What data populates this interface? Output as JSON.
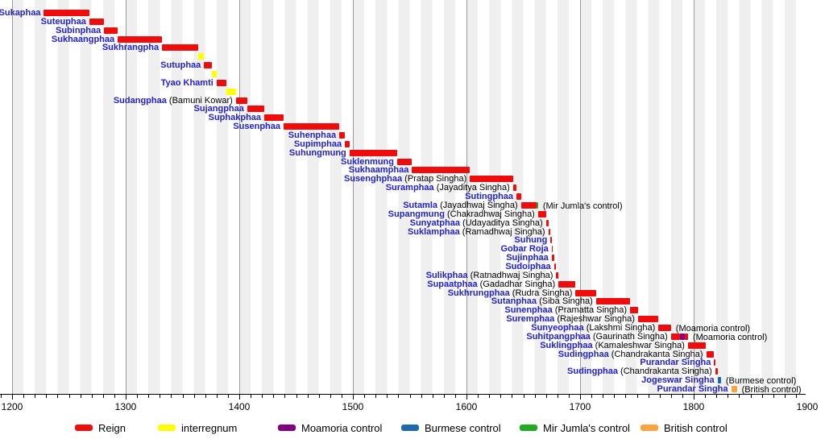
{
  "chart_data": {
    "type": "timeline",
    "title": "",
    "x_axis": {
      "min": 1200,
      "max": 1900,
      "major_tick_step": 100,
      "minor_tick_step": 10,
      "tick_labels": [
        "1200",
        "1300",
        "1400",
        "1500",
        "1600",
        "1700",
        "1800",
        "1900"
      ]
    },
    "colors": {
      "reign": "#ee0c0c",
      "interregnum": "#ffff00",
      "moamoria": "#800080",
      "burmese": "#2068ae",
      "mirjumla": "#22ab22",
      "british": "#ffa43d",
      "label_blue": "#2222cc",
      "gridline": "#999999",
      "stripe": "#efefef",
      "axis": "#000000"
    },
    "legend": [
      {
        "label": "Reign",
        "kind": "reign"
      },
      {
        "label": "interregnum",
        "kind": "interregnum"
      },
      {
        "label": "Moamoria control",
        "kind": "moamoria"
      },
      {
        "label": "Burmese control",
        "kind": "burmese"
      },
      {
        "label": "Mir Jumla's control",
        "kind": "mirjumla"
      },
      {
        "label": "British control",
        "kind": "british"
      }
    ],
    "rows": [
      {
        "name": "Sukaphaa",
        "detail": "",
        "note": "",
        "segments": [
          {
            "from": 1228,
            "to": 1268,
            "kind": "reign"
          }
        ]
      },
      {
        "name": "Suteuphaa",
        "detail": "",
        "note": "",
        "segments": [
          {
            "from": 1268,
            "to": 1281,
            "kind": "reign"
          }
        ]
      },
      {
        "name": "Subinphaa",
        "detail": "",
        "note": "",
        "segments": [
          {
            "from": 1281,
            "to": 1293,
            "kind": "reign"
          }
        ]
      },
      {
        "name": "Sukhaangphaa",
        "detail": "",
        "note": "",
        "segments": [
          {
            "from": 1293,
            "to": 1332,
            "kind": "reign"
          }
        ]
      },
      {
        "name": "Sukhrangpha",
        "detail": "",
        "note": "",
        "segments": [
          {
            "from": 1332,
            "to": 1364,
            "kind": "reign"
          }
        ]
      },
      {
        "name": "",
        "detail": "",
        "note": "",
        "segments": [
          {
            "from": 1364,
            "to": 1369,
            "kind": "interregnum"
          }
        ]
      },
      {
        "name": "Sutuphaa",
        "detail": "",
        "note": "",
        "segments": [
          {
            "from": 1369,
            "to": 1376,
            "kind": "reign"
          }
        ]
      },
      {
        "name": "",
        "detail": "",
        "note": "",
        "segments": [
          {
            "from": 1376,
            "to": 1380,
            "kind": "interregnum"
          }
        ]
      },
      {
        "name": "Tyao Khamti",
        "detail": "",
        "note": "",
        "segments": [
          {
            "from": 1380,
            "to": 1389,
            "kind": "reign"
          }
        ]
      },
      {
        "name": "",
        "detail": "",
        "note": "",
        "segments": [
          {
            "from": 1389,
            "to": 1397,
            "kind": "interregnum"
          }
        ]
      },
      {
        "name": "Sudangphaa",
        "detail": "(Bamuni Kowar)",
        "note": "",
        "segments": [
          {
            "from": 1397,
            "to": 1407,
            "kind": "reign"
          }
        ]
      },
      {
        "name": "Sujangphaa",
        "detail": "",
        "note": "",
        "segments": [
          {
            "from": 1407,
            "to": 1422,
            "kind": "reign"
          }
        ]
      },
      {
        "name": "Suphakphaa",
        "detail": "",
        "note": "",
        "segments": [
          {
            "from": 1422,
            "to": 1439,
            "kind": "reign"
          }
        ]
      },
      {
        "name": "Susenphaa",
        "detail": "",
        "note": "",
        "segments": [
          {
            "from": 1439,
            "to": 1488,
            "kind": "reign"
          }
        ]
      },
      {
        "name": "Suhenphaa",
        "detail": "",
        "note": "",
        "segments": [
          {
            "from": 1488,
            "to": 1493,
            "kind": "reign"
          }
        ]
      },
      {
        "name": "Supimphaa",
        "detail": "",
        "note": "",
        "segments": [
          {
            "from": 1493,
            "to": 1497,
            "kind": "reign"
          }
        ]
      },
      {
        "name": "Suhungmung",
        "detail": "",
        "note": "",
        "segments": [
          {
            "from": 1497,
            "to": 1539,
            "kind": "reign"
          }
        ]
      },
      {
        "name": "Suklenmung",
        "detail": "",
        "note": "",
        "segments": [
          {
            "from": 1539,
            "to": 1552,
            "kind": "reign"
          }
        ]
      },
      {
        "name": "Sukhaamphaa",
        "detail": "",
        "note": "",
        "segments": [
          {
            "from": 1552,
            "to": 1603,
            "kind": "reign"
          }
        ]
      },
      {
        "name": "Susenghphaa",
        "detail": "(Pratap Singha)",
        "note": "",
        "segments": [
          {
            "from": 1603,
            "to": 1641,
            "kind": "reign"
          }
        ]
      },
      {
        "name": "Suramphaa",
        "detail": "(Jayaditya Singha)",
        "note": "",
        "segments": [
          {
            "from": 1641,
            "to": 1644,
            "kind": "reign"
          }
        ]
      },
      {
        "name": "Sutingphaa",
        "detail": "",
        "note": "",
        "segments": [
          {
            "from": 1644,
            "to": 1648,
            "kind": "reign"
          }
        ]
      },
      {
        "name": "Sutamla",
        "detail": "(Jayadhwaj Singha)",
        "note": "(Mir Jumla's control)",
        "segments": [
          {
            "from": 1648,
            "to": 1662,
            "kind": "reign"
          },
          {
            "from": 1662,
            "to": 1663,
            "kind": "mirjumla"
          }
        ]
      },
      {
        "name": "Supangmung",
        "detail": "(Chakradhwaj Singha)",
        "note": "",
        "segments": [
          {
            "from": 1663,
            "to": 1670,
            "kind": "reign"
          }
        ]
      },
      {
        "name": "Sunyatphaa",
        "detail": "(Udayaditya Singha)",
        "note": "",
        "segments": [
          {
            "from": 1670,
            "to": 1672,
            "kind": "reign"
          }
        ]
      },
      {
        "name": "Suklamphaa",
        "detail": "(Ramadhwaj Singha)",
        "note": "",
        "segments": [
          {
            "from": 1672,
            "to": 1674,
            "kind": "reign"
          }
        ]
      },
      {
        "name": "Suhung",
        "detail": "",
        "note": "",
        "segments": [
          {
            "from": 1674,
            "to": 1675,
            "kind": "reign"
          }
        ]
      },
      {
        "name": "Gobar Roja",
        "detail": "",
        "note": "",
        "segments": [
          {
            "from": 1675,
            "to": 1675,
            "kind": "reign"
          }
        ]
      },
      {
        "name": "Sujinphaa",
        "detail": "",
        "note": "",
        "segments": [
          {
            "from": 1675,
            "to": 1677,
            "kind": "reign"
          }
        ]
      },
      {
        "name": "Sudoiphaa",
        "detail": "",
        "note": "",
        "segments": [
          {
            "from": 1677,
            "to": 1679,
            "kind": "reign"
          }
        ]
      },
      {
        "name": "Sulikphaa",
        "detail": "(Ratnadhwaj Singha)",
        "note": "",
        "segments": [
          {
            "from": 1679,
            "to": 1681,
            "kind": "reign"
          }
        ]
      },
      {
        "name": "Supaatphaa",
        "detail": "(Gadadhar Singha)",
        "note": "",
        "segments": [
          {
            "from": 1681,
            "to": 1696,
            "kind": "reign"
          }
        ]
      },
      {
        "name": "Sukhrungphaa",
        "detail": "(Rudra Singha)",
        "note": "",
        "segments": [
          {
            "from": 1696,
            "to": 1714,
            "kind": "reign"
          }
        ]
      },
      {
        "name": "Sutanphaa",
        "detail": "(Siba Singha)",
        "note": "",
        "segments": [
          {
            "from": 1714,
            "to": 1744,
            "kind": "reign"
          }
        ]
      },
      {
        "name": "Sunenphaa",
        "detail": "(Pramatta Singha)",
        "note": "",
        "segments": [
          {
            "from": 1744,
            "to": 1751,
            "kind": "reign"
          }
        ]
      },
      {
        "name": "Suremphaa",
        "detail": "(Rajeshwar Singha)",
        "note": "",
        "segments": [
          {
            "from": 1751,
            "to": 1769,
            "kind": "reign"
          }
        ]
      },
      {
        "name": "Sunyeophaa",
        "detail": "(Lakshmi Singha)",
        "note": "(Moamoria control)",
        "segments": [
          {
            "from": 1769,
            "to": 1780,
            "kind": "reign"
          }
        ]
      },
      {
        "name": "Suhitpangphaa",
        "detail": "(Gaurinath Singha)",
        "note": "(Moamoria control)",
        "segments": [
          {
            "from": 1780,
            "to": 1788,
            "kind": "reign"
          },
          {
            "from": 1788,
            "to": 1792,
            "kind": "moamoria"
          },
          {
            "from": 1792,
            "to": 1795,
            "kind": "reign"
          }
        ]
      },
      {
        "name": "Suklingphaa",
        "detail": "(Kamaleshwar Singha)",
        "note": "",
        "segments": [
          {
            "from": 1795,
            "to": 1811,
            "kind": "reign"
          }
        ]
      },
      {
        "name": "Sudingphaa",
        "detail": "(Chandrakanta Singha)",
        "note": "",
        "segments": [
          {
            "from": 1811,
            "to": 1818,
            "kind": "reign"
          }
        ]
      },
      {
        "name": "Purandar Singha",
        "detail": "",
        "note": "",
        "segments": [
          {
            "from": 1818,
            "to": 1819,
            "kind": "reign"
          }
        ]
      },
      {
        "name": "Sudingphaa",
        "detail": "(Chandrakanta Singha)",
        "note": "",
        "segments": [
          {
            "from": 1819,
            "to": 1821,
            "kind": "reign"
          }
        ]
      },
      {
        "name": "Jogeswar Singha",
        "detail": "",
        "note": "(Burmese control)",
        "segments": [
          {
            "from": 1821,
            "to": 1824,
            "kind": "burmese"
          }
        ]
      },
      {
        "name": "Purandar Singha",
        "detail": "",
        "note": "(British control)",
        "segments": [
          {
            "from": 1833,
            "to": 1838,
            "kind": "british"
          }
        ]
      }
    ]
  }
}
